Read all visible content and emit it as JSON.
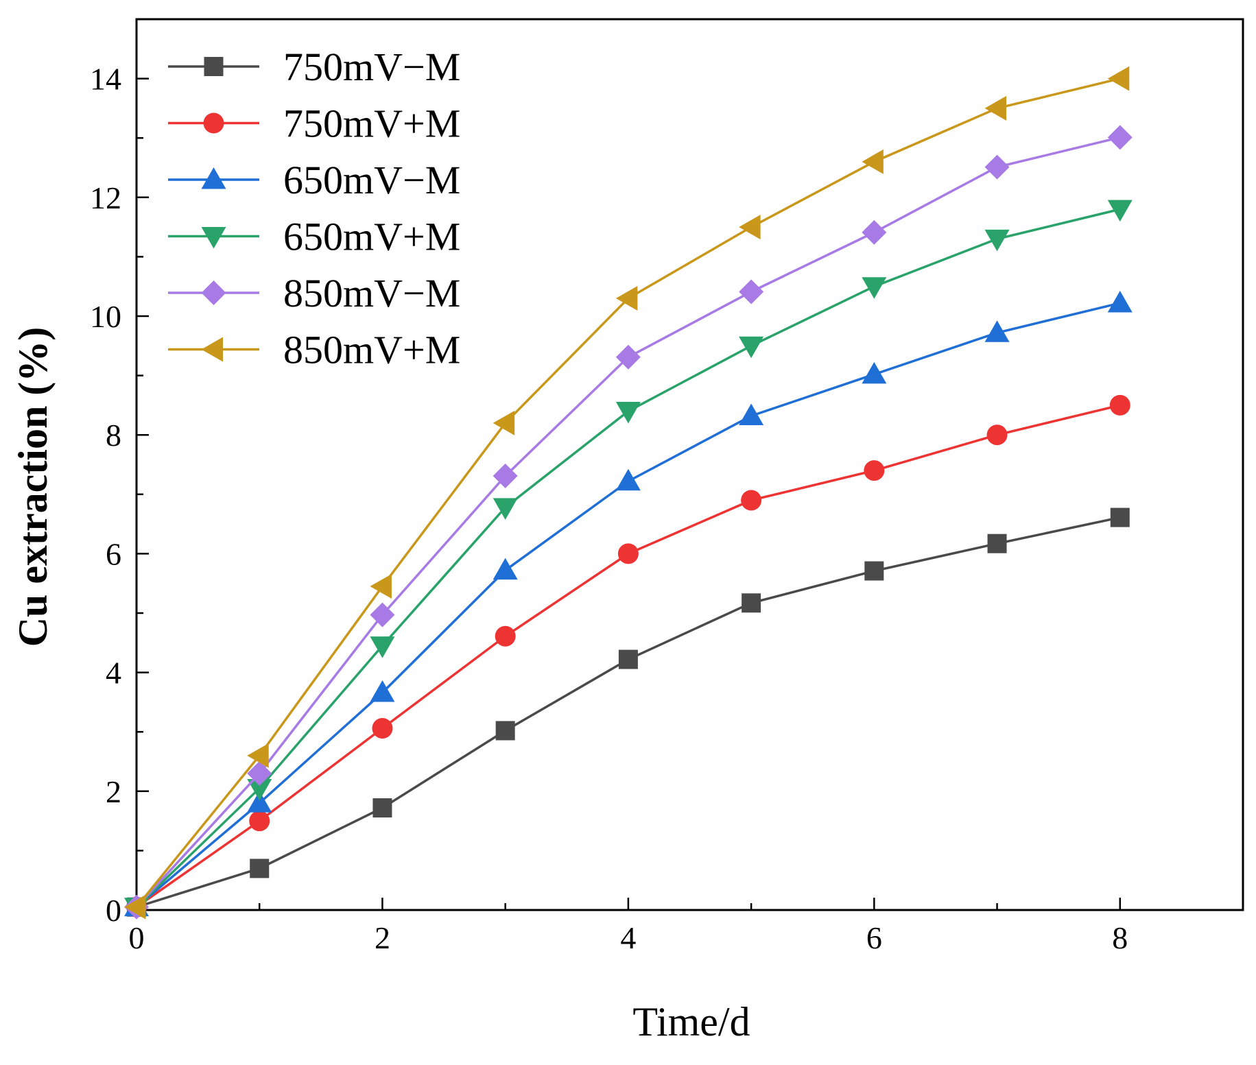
{
  "chart_data": {
    "type": "line",
    "title": "",
    "xlabel": "Time/d",
    "ylabel": "Cu extraction (%)",
    "xlim": [
      0,
      9
    ],
    "ylim": [
      0,
      15
    ],
    "xticks": [
      0,
      2,
      4,
      6,
      8
    ],
    "yticks": [
      0,
      2,
      4,
      6,
      8,
      10,
      12,
      14
    ],
    "grid": false,
    "legend_position": "top-left",
    "x": [
      0,
      1,
      2,
      3,
      4,
      5,
      6,
      7,
      8
    ],
    "series": [
      {
        "name": "750mV−M",
        "color": "#4a4a4a",
        "marker": "square",
        "values": [
          0.05,
          0.7,
          1.72,
          3.02,
          4.22,
          5.17,
          5.71,
          6.17,
          6.61
        ]
      },
      {
        "name": "750mV+M",
        "color": "#ee3333",
        "marker": "circle",
        "values": [
          0.05,
          1.5,
          3.06,
          4.61,
          6.0,
          6.9,
          7.4,
          8.0,
          8.5
        ]
      },
      {
        "name": "650mV−M",
        "color": "#1f6fd6",
        "marker": "triangle-up",
        "values": [
          0.05,
          1.8,
          3.66,
          5.72,
          7.22,
          8.32,
          9.02,
          9.72,
          10.22
        ]
      },
      {
        "name": "650mV+M",
        "color": "#2aa36b",
        "marker": "triangle-down",
        "values": [
          0.05,
          2.05,
          4.45,
          6.78,
          8.4,
          9.5,
          10.5,
          11.3,
          11.8
        ]
      },
      {
        "name": "850mV−M",
        "color": "#a77ae6",
        "marker": "diamond",
        "values": [
          0.05,
          2.3,
          4.97,
          7.31,
          9.31,
          10.41,
          11.41,
          12.51,
          13.01
        ]
      },
      {
        "name": "850mV+M",
        "color": "#c9981a",
        "marker": "triangle-left",
        "values": [
          0.05,
          2.6,
          5.45,
          8.2,
          10.3,
          11.5,
          12.6,
          13.5,
          14.0
        ]
      }
    ]
  }
}
